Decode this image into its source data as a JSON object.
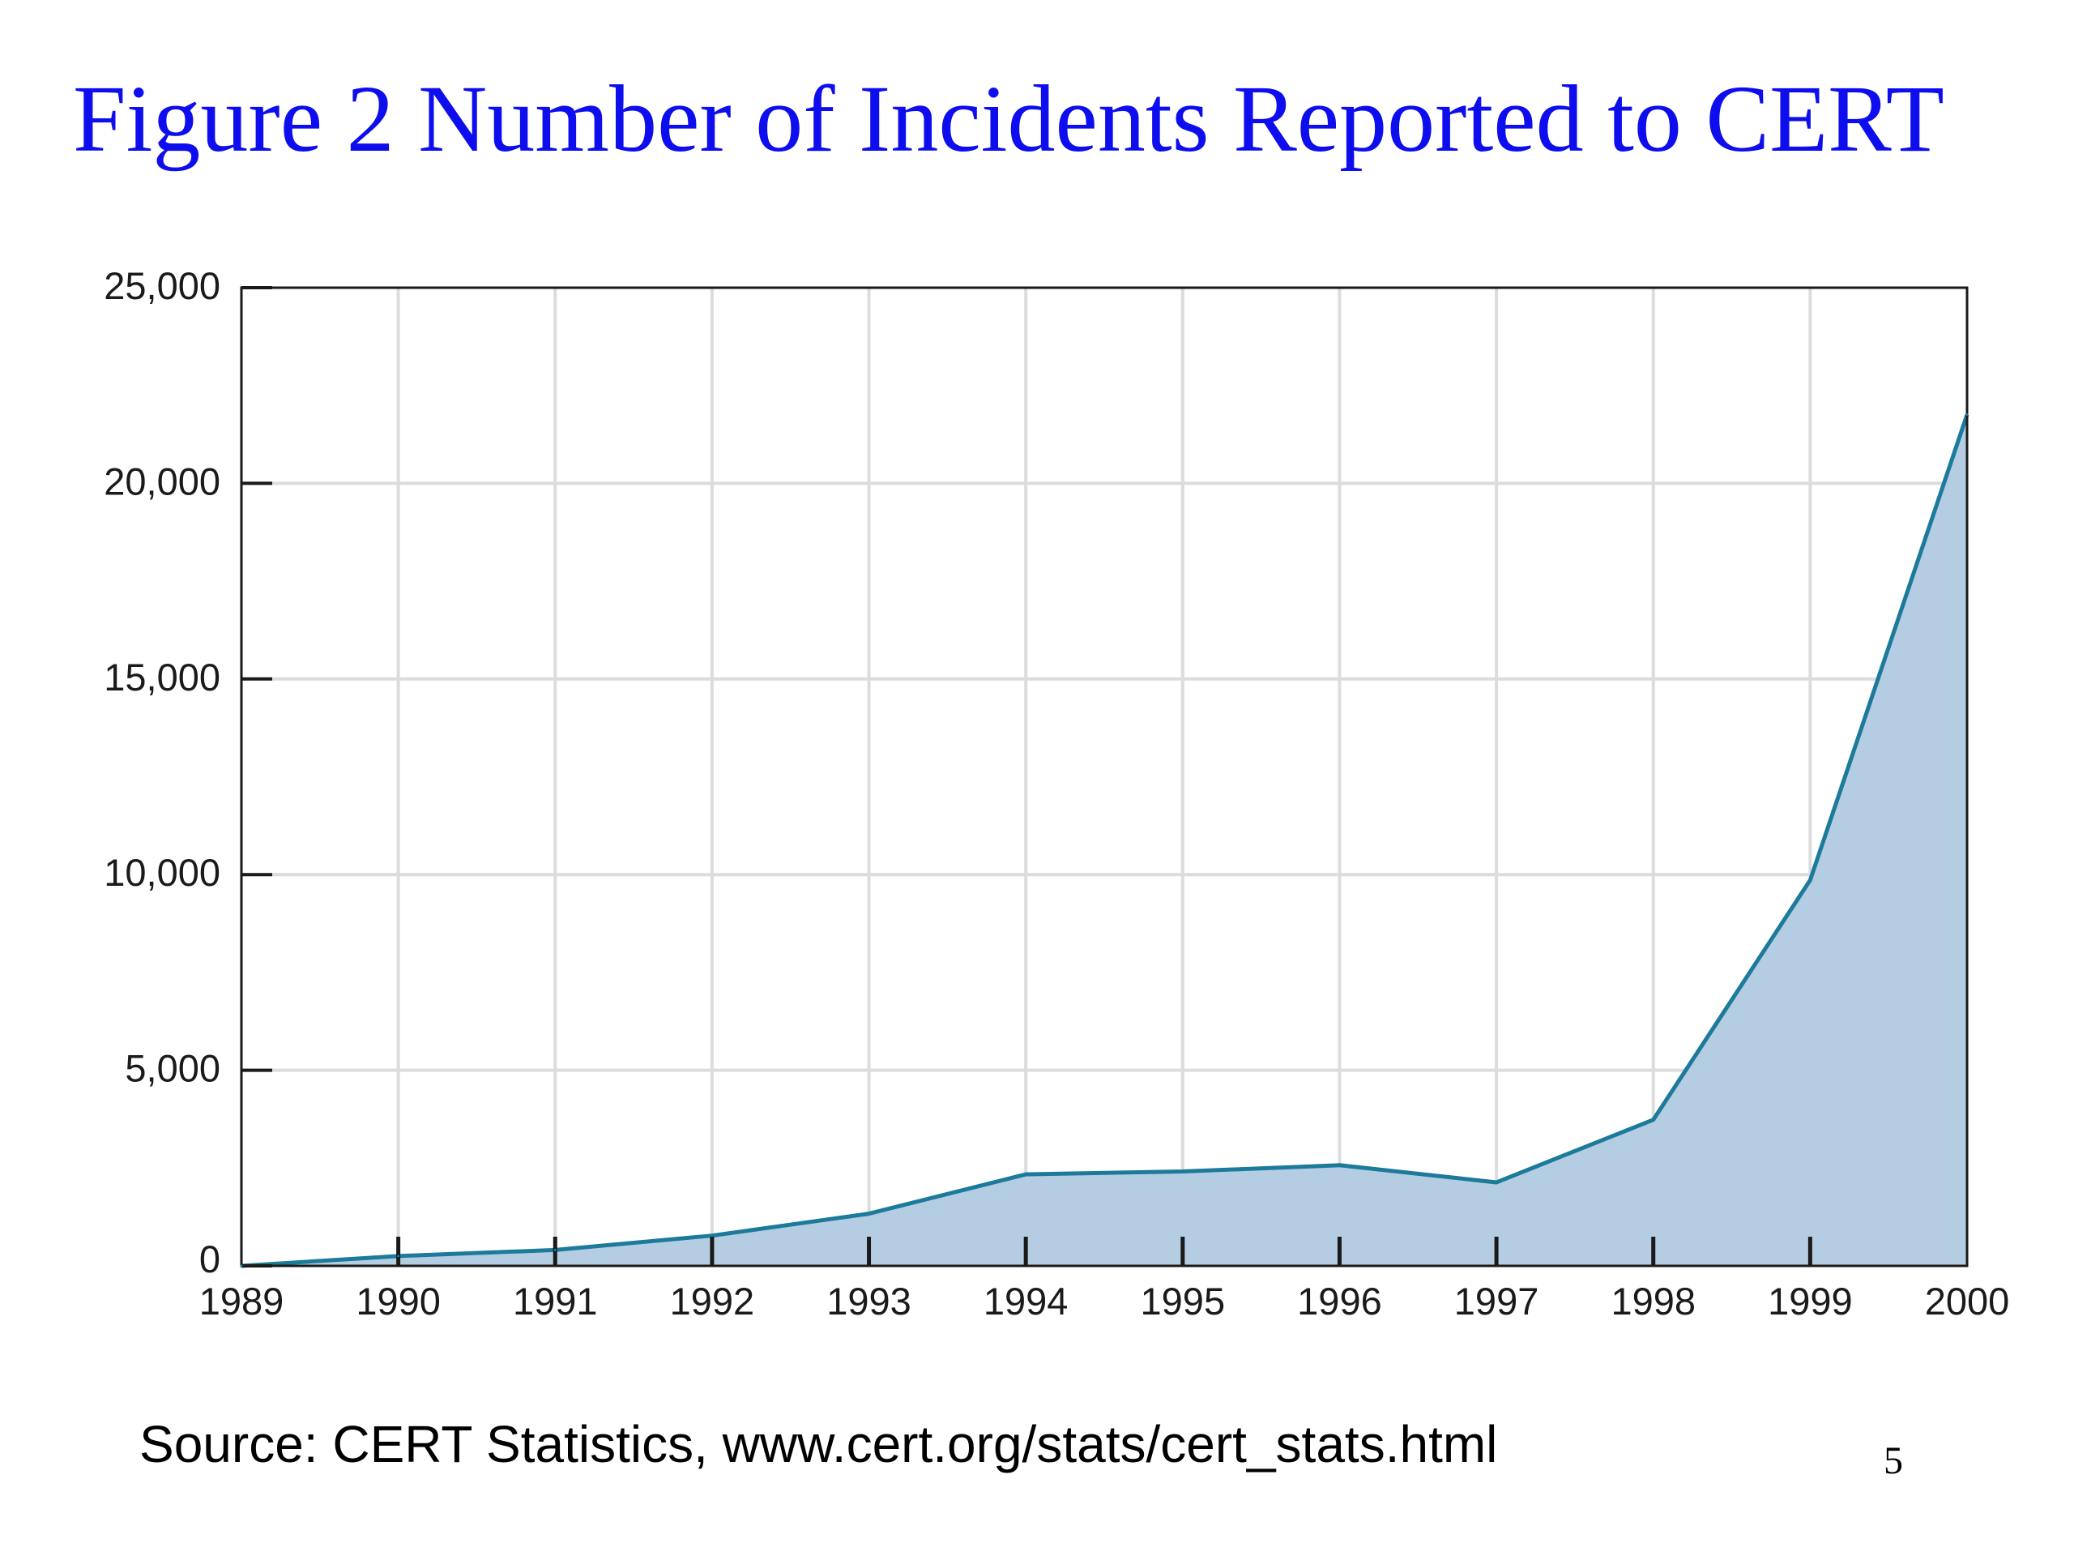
{
  "slide": {
    "title": "Figure 2 Number of Incidents Reported to CERT",
    "source": "Source: CERT Statistics, www.cert.org/stats/cert_stats.html",
    "page_number": "5"
  },
  "colors": {
    "title": "#0d0dee",
    "line": "#1c7a9a",
    "area_fill": "#b5cde3",
    "grid": "#dcdcdc",
    "axis": "#1a1a1a"
  },
  "chart_data": {
    "type": "area",
    "title": "",
    "xlabel": "",
    "ylabel": "",
    "x": [
      "1989",
      "1990",
      "1991",
      "1992",
      "1993",
      "1994",
      "1995",
      "1996",
      "1997",
      "1998",
      "1999",
      "2000"
    ],
    "series": [
      {
        "values": [
          0,
          252,
          406,
          773,
          1334,
          2340,
          2412,
          2573,
          2134,
          3734,
          9859,
          21756
        ]
      }
    ],
    "ylim": [
      0,
      25000
    ],
    "y_ticks": [
      0,
      5000,
      10000,
      15000,
      20000,
      25000
    ],
    "y_tick_labels": [
      "0",
      "5,000",
      "10,000",
      "15,000",
      "20,000",
      "25,000"
    ],
    "grid": true,
    "legend": "none"
  }
}
